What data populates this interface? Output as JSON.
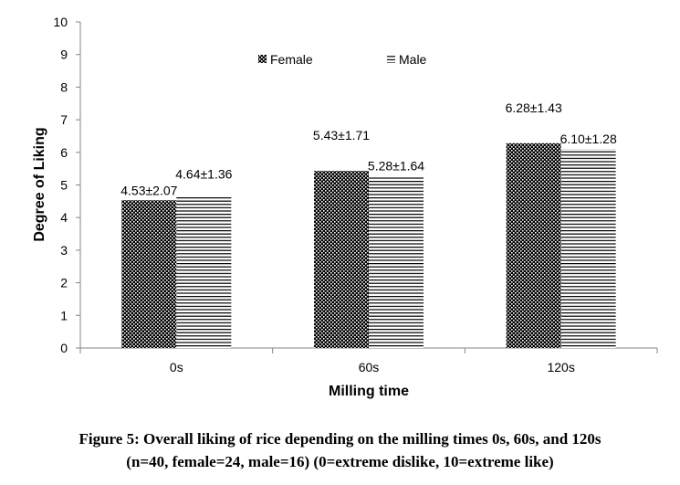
{
  "chart_data": {
    "type": "bar",
    "categories": [
      "0s",
      "60s",
      "120s"
    ],
    "series": [
      {
        "name": "Female",
        "values": [
          4.53,
          5.43,
          6.28
        ],
        "labels": [
          "4.53±2.07",
          "5.43±1.71",
          "6.28±1.43"
        ],
        "pattern": "dots",
        "color": "#000000"
      },
      {
        "name": "Male",
        "values": [
          4.64,
          5.28,
          6.1
        ],
        "labels": [
          "4.64±1.36",
          "5.28±1.64",
          "6.10±1.28"
        ],
        "pattern": "horizontal-lines",
        "color": "#000000"
      }
    ],
    "xlabel": "Milling time",
    "ylabel": "Degree of Liking",
    "ylim": [
      0,
      10
    ],
    "yticks": [
      "0",
      "1",
      "2",
      "3",
      "4",
      "5",
      "6",
      "7",
      "8",
      "9",
      "10"
    ],
    "grid": false,
    "legend_position": "top-center"
  },
  "caption": {
    "line1": "Figure 5: Overall liking of rice depending on the milling times 0s, 60s, and 120s",
    "line2": "(n=40, female=24, male=16) (0=extreme dislike, 10=extreme like)"
  }
}
